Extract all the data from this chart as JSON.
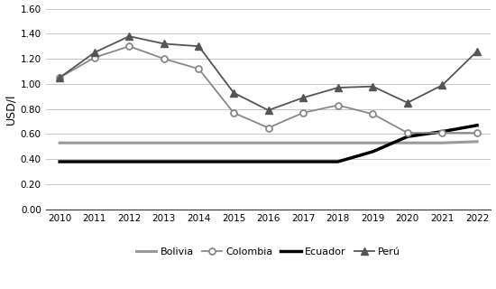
{
  "years": [
    2010,
    2011,
    2012,
    2013,
    2014,
    2015,
    2016,
    2017,
    2018,
    2019,
    2020,
    2021,
    2022
  ],
  "bolivia": [
    0.53,
    0.53,
    0.53,
    0.53,
    0.53,
    0.53,
    0.53,
    0.53,
    0.53,
    0.53,
    0.53,
    0.53,
    0.54
  ],
  "colombia": [
    1.05,
    1.21,
    1.3,
    1.2,
    1.12,
    0.77,
    0.65,
    0.77,
    0.83,
    0.76,
    0.61,
    0.61,
    0.61
  ],
  "ecuador": [
    0.38,
    0.38,
    0.38,
    0.38,
    0.38,
    0.38,
    0.38,
    0.38,
    0.38,
    0.46,
    0.58,
    0.62,
    0.67
  ],
  "peru": [
    1.05,
    1.25,
    1.38,
    1.32,
    1.3,
    0.93,
    0.79,
    0.89,
    0.97,
    0.98,
    0.85,
    0.99,
    1.26
  ],
  "bolivia_color": "#999999",
  "colombia_color": "#888888",
  "ecuador_color": "#000000",
  "peru_color": "#555555",
  "ylabel": "USD/l",
  "ylim": [
    0.0,
    1.6
  ],
  "yticks": [
    0.0,
    0.2,
    0.4,
    0.6,
    0.8,
    1.0,
    1.2,
    1.4,
    1.6
  ],
  "background_color": "#ffffff",
  "grid_color": "#bbbbbb"
}
